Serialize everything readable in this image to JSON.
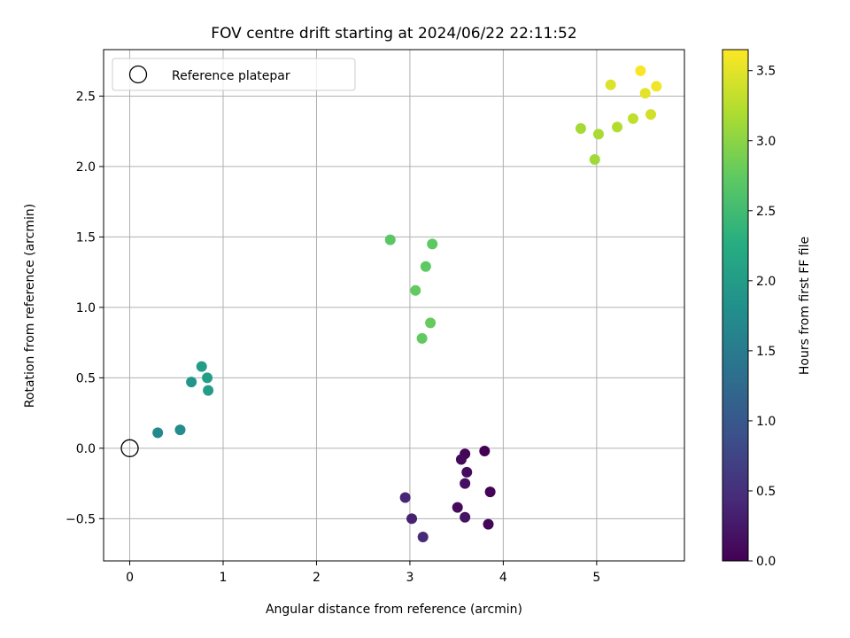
{
  "chart_data": {
    "type": "scatter",
    "title": "FOV centre drift starting at 2024/06/22 22:11:52",
    "xlabel": "Angular distance from reference (arcmin)",
    "ylabel": "Rotation from reference (arcmin)",
    "xlim": [
      -0.28,
      5.94
    ],
    "ylim": [
      -0.8,
      2.83
    ],
    "xticks": [
      0,
      1,
      2,
      3,
      4,
      5
    ],
    "yticks": [
      -0.5,
      0.0,
      0.5,
      1.0,
      1.5,
      2.0,
      2.5
    ],
    "xtick_labels": [
      "0",
      "1",
      "2",
      "3",
      "4",
      "5"
    ],
    "ytick_labels": [
      "−0.5",
      "0.0",
      "0.5",
      "1.0",
      "1.5",
      "2.0",
      "2.5"
    ],
    "grid": true,
    "legend": {
      "placement": "top-left",
      "entries": [
        "Reference platepar"
      ]
    },
    "colorbar": {
      "label": "Hours from first FF file",
      "colormap": "viridis",
      "range": [
        0.0,
        3.65
      ],
      "ticks": [
        0.0,
        0.5,
        1.0,
        1.5,
        2.0,
        2.5,
        3.0,
        3.5
      ],
      "tick_labels": [
        "0.0",
        "0.5",
        "1.0",
        "1.5",
        "2.0",
        "2.5",
        "3.0",
        "3.5"
      ]
    },
    "reference_point": {
      "x": 0.0,
      "y": 0.0,
      "marker": "open-circle"
    },
    "points": [
      {
        "x": 3.8,
        "y": -0.02,
        "c": 0.0
      },
      {
        "x": 3.59,
        "y": -0.04,
        "c": 0.04
      },
      {
        "x": 3.55,
        "y": -0.08,
        "c": 0.08
      },
      {
        "x": 3.61,
        "y": -0.17,
        "c": 0.12
      },
      {
        "x": 3.59,
        "y": -0.25,
        "c": 0.16
      },
      {
        "x": 3.86,
        "y": -0.31,
        "c": 0.02
      },
      {
        "x": 3.51,
        "y": -0.42,
        "c": 0.1
      },
      {
        "x": 3.59,
        "y": -0.49,
        "c": 0.2
      },
      {
        "x": 3.84,
        "y": -0.54,
        "c": 0.05
      },
      {
        "x": 2.95,
        "y": -0.35,
        "c": 0.4
      },
      {
        "x": 3.02,
        "y": -0.5,
        "c": 0.35
      },
      {
        "x": 3.14,
        "y": -0.63,
        "c": 0.45
      },
      {
        "x": 0.3,
        "y": 0.11,
        "c": 1.7
      },
      {
        "x": 0.54,
        "y": 0.13,
        "c": 1.75
      },
      {
        "x": 0.66,
        "y": 0.47,
        "c": 1.9
      },
      {
        "x": 0.77,
        "y": 0.58,
        "c": 2.0
      },
      {
        "x": 0.83,
        "y": 0.5,
        "c": 2.05
      },
      {
        "x": 0.84,
        "y": 0.41,
        "c": 2.02
      },
      {
        "x": 2.79,
        "y": 1.48,
        "c": 2.7
      },
      {
        "x": 3.24,
        "y": 1.45,
        "c": 2.72
      },
      {
        "x": 3.17,
        "y": 1.29,
        "c": 2.74
      },
      {
        "x": 3.06,
        "y": 1.12,
        "c": 2.76
      },
      {
        "x": 3.22,
        "y": 0.89,
        "c": 2.78
      },
      {
        "x": 3.13,
        "y": 0.78,
        "c": 2.75
      },
      {
        "x": 4.83,
        "y": 2.27,
        "c": 3.15
      },
      {
        "x": 5.02,
        "y": 2.23,
        "c": 3.18
      },
      {
        "x": 4.98,
        "y": 2.05,
        "c": 3.12
      },
      {
        "x": 5.22,
        "y": 2.28,
        "c": 3.22
      },
      {
        "x": 5.39,
        "y": 2.34,
        "c": 3.3
      },
      {
        "x": 5.58,
        "y": 2.37,
        "c": 3.4
      },
      {
        "x": 5.15,
        "y": 2.58,
        "c": 3.45
      },
      {
        "x": 5.52,
        "y": 2.52,
        "c": 3.5
      },
      {
        "x": 5.64,
        "y": 2.57,
        "c": 3.58
      },
      {
        "x": 5.47,
        "y": 2.68,
        "c": 3.62
      }
    ]
  }
}
